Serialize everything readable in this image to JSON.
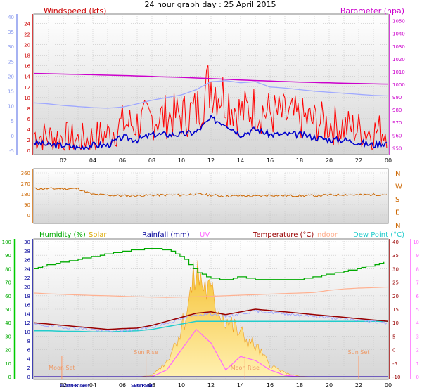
{
  "title": "24 hour graph day : 25 April 2015",
  "colors": {
    "wind_avg": "#0000cc",
    "wind_gust": "#ff0000",
    "wind_gust_avg": "#9fa8ff",
    "baro": "#cc00cc",
    "dir": "#cc6600",
    "humidity": "#00aa00",
    "solar": "#ddaa00",
    "rain": "#000099",
    "uv": "#ff66ff",
    "temp": "#990000",
    "indoor": "#ffb090",
    "dew": "#22cccc"
  },
  "x_ticks": [
    "02",
    "04",
    "06",
    "08",
    "10",
    "12",
    "14",
    "16",
    "18",
    "20",
    "22",
    "00"
  ],
  "chart_data": [
    {
      "type": "line",
      "title": "",
      "legend": [
        "Windspeed (kts)",
        "Barometer (hpa)"
      ],
      "left_axis": {
        "label": "Windspeed (kts)",
        "ticks": [
          0,
          2,
          4,
          6,
          8,
          10,
          12,
          14,
          16,
          18,
          20,
          22,
          24
        ],
        "ylim": [
          0,
          25
        ]
      },
      "outer_left_axis": {
        "ticks": [
          -5,
          0,
          5,
          10,
          15,
          20,
          25,
          30,
          35,
          40
        ]
      },
      "right_axis": {
        "label": "Barometer (hpa)",
        "ticks": [
          950,
          960,
          970,
          980,
          990,
          1000,
          1010,
          1020,
          1030,
          1040,
          1050
        ],
        "ylim": [
          948,
          1052
        ]
      },
      "x_hours": [
        0,
        1,
        2,
        3,
        4,
        5,
        6,
        7,
        8,
        9,
        10,
        11,
        12,
        13,
        14,
        15,
        16,
        17,
        18,
        19,
        20,
        21,
        22,
        23,
        24
      ],
      "series": [
        {
          "name": "Windspeed (kts)",
          "axis": "left",
          "values": [
            1.5,
            1,
            1,
            0.5,
            1,
            1,
            2.5,
            2,
            3,
            3,
            3,
            3.5,
            6,
            5,
            3,
            4,
            3,
            3,
            3,
            2.5,
            2,
            2,
            1.5,
            1,
            1.5
          ]
        },
        {
          "name": "gust",
          "axis": "left",
          "values": [
            3,
            2.5,
            2.5,
            2,
            2.5,
            3,
            5,
            5,
            6,
            6.5,
            6.5,
            7.5,
            13,
            10,
            7,
            8,
            7,
            6.5,
            6,
            5.5,
            5,
            4.5,
            4,
            3.5,
            4
          ]
        },
        {
          "name": "gust average",
          "axis": "left",
          "values": [
            9,
            8.8,
            8.5,
            8.3,
            8.1,
            8,
            8.2,
            8.8,
            9.5,
            10,
            10.5,
            11.5,
            13,
            13.2,
            12.8,
            13,
            12,
            11.8,
            11.5,
            11.2,
            11,
            10.8,
            10.6,
            10.4,
            10.3
          ]
        },
        {
          "name": "Barometer (hpa)",
          "axis": "right",
          "values": [
            1008.5,
            1008.3,
            1008,
            1007.8,
            1007.5,
            1007.2,
            1006.9,
            1006.6,
            1006.2,
            1005.8,
            1005.5,
            1005,
            1004.5,
            1004,
            1003.5,
            1003,
            1002.6,
            1002.2,
            1001.8,
            1001.5,
            1001.2,
            1000.9,
            1000.7,
            1000.4,
            1000.2
          ]
        }
      ]
    },
    {
      "type": "line",
      "title": "",
      "left_axis": {
        "ticks": [
          0,
          90,
          180,
          270,
          360
        ],
        "ylim": [
          0,
          360
        ]
      },
      "right_axis": {
        "ticks": [
          "N",
          "W",
          "S",
          "E",
          "N"
        ]
      },
      "x_hours": [
        0,
        1,
        2,
        3,
        4,
        5,
        6,
        7,
        8,
        9,
        10,
        11,
        12,
        13,
        14,
        15,
        16,
        17,
        18,
        19,
        20,
        21,
        22,
        23,
        24
      ],
      "series": [
        {
          "name": "wind direction",
          "values": [
            225,
            225,
            225,
            225,
            175,
            170,
            165,
            165,
            170,
            170,
            170,
            180,
            170,
            160,
            165,
            160,
            170,
            165,
            165,
            165,
            170,
            175,
            170,
            175,
            175
          ]
        }
      ]
    },
    {
      "type": "line",
      "title": "",
      "legend": [
        "Humidity (%)",
        "Solar",
        "Rainfall (mm)",
        "UV",
        "Temperature (°C)",
        "Indoor",
        "Dew Point (°C)"
      ],
      "axes": {
        "humidity": {
          "ticks": [
            0,
            10,
            20,
            30,
            40,
            50,
            60,
            70,
            80,
            90,
            100
          ]
        },
        "rainfall": {
          "ticks": [
            0,
            2,
            4,
            6,
            8,
            10,
            12,
            14,
            16,
            18,
            20,
            22,
            24,
            26,
            28,
            30
          ]
        },
        "temperature": {
          "ticks": [
            -10,
            -5,
            0,
            5,
            10,
            15,
            20,
            25,
            30,
            35,
            40
          ]
        },
        "uv": {
          "ticks": [
            0,
            1,
            2,
            3,
            4,
            5,
            6,
            7,
            8,
            9,
            10
          ]
        }
      },
      "x_hours": [
        0,
        1,
        2,
        3,
        4,
        5,
        6,
        7,
        8,
        9,
        10,
        11,
        12,
        13,
        14,
        15,
        16,
        17,
        18,
        19,
        20,
        21,
        22,
        23,
        24
      ],
      "series": [
        {
          "name": "Humidity (%)",
          "values": [
            80,
            83,
            85,
            87,
            89,
            91,
            93,
            94,
            95,
            94,
            89,
            78,
            73,
            72,
            74,
            72,
            72,
            72,
            72,
            74,
            76,
            78,
            80,
            83,
            86
          ]
        },
        {
          "name": "Temperature (°C)",
          "values": [
            10,
            9.5,
            9,
            8.5,
            8,
            7.5,
            7.8,
            8,
            9,
            10.5,
            12,
            13.5,
            14,
            13,
            14,
            15,
            14.5,
            14,
            13.5,
            13,
            12.5,
            12,
            11.5,
            11,
            10.5
          ]
        },
        {
          "name": "Indoor",
          "values": [
            21,
            20.7,
            20.5,
            20.3,
            20.1,
            20,
            19.8,
            19.6,
            19.5,
            19.4,
            19.5,
            19.6,
            19.8,
            20,
            20.2,
            20.4,
            20.6,
            20.8,
            21,
            21.2,
            22,
            22.5,
            22.8,
            23,
            23.2
          ]
        },
        {
          "name": "Dew Point (°C)",
          "values": [
            7,
            7,
            6.8,
            6.8,
            6.6,
            6.6,
            6.8,
            7,
            7.5,
            8.5,
            9.5,
            10.5,
            10.5,
            10.5,
            10.5,
            10.5,
            10.5,
            10.5,
            10.5,
            10.5,
            10.5,
            10.5,
            10.5,
            10.5,
            10.5
          ]
        },
        {
          "name": "Solar",
          "values": [
            0,
            0,
            0,
            0,
            0,
            0,
            0,
            0,
            5,
            80,
            250,
            540,
            420,
            300,
            220,
            160,
            60,
            20,
            2,
            0,
            0,
            0,
            0,
            0,
            0
          ]
        },
        {
          "name": "UV",
          "values": [
            0,
            0,
            0,
            0,
            0,
            0,
            0,
            0,
            0,
            0.5,
            2,
            3.5,
            2.5,
            0.5,
            1.5,
            1.2,
            0.5,
            0.1,
            0,
            0,
            0,
            0,
            0,
            0,
            0
          ]
        },
        {
          "name": "Rainfall (mm)",
          "values": [
            0,
            0,
            0,
            0,
            0,
            0,
            0,
            0,
            0,
            0,
            0,
            0,
            0,
            0,
            0,
            0,
            0,
            0,
            0,
            0,
            0,
            0,
            0,
            0,
            0
          ]
        }
      ],
      "annotations": [
        "Moon Set",
        "Sun Rise",
        "Moon Rise",
        "Sun Set"
      ],
      "bottom_ticks": [
        "Moon Set",
        "Moon Rise",
        "Sun Rise",
        "Sun Set"
      ]
    }
  ]
}
